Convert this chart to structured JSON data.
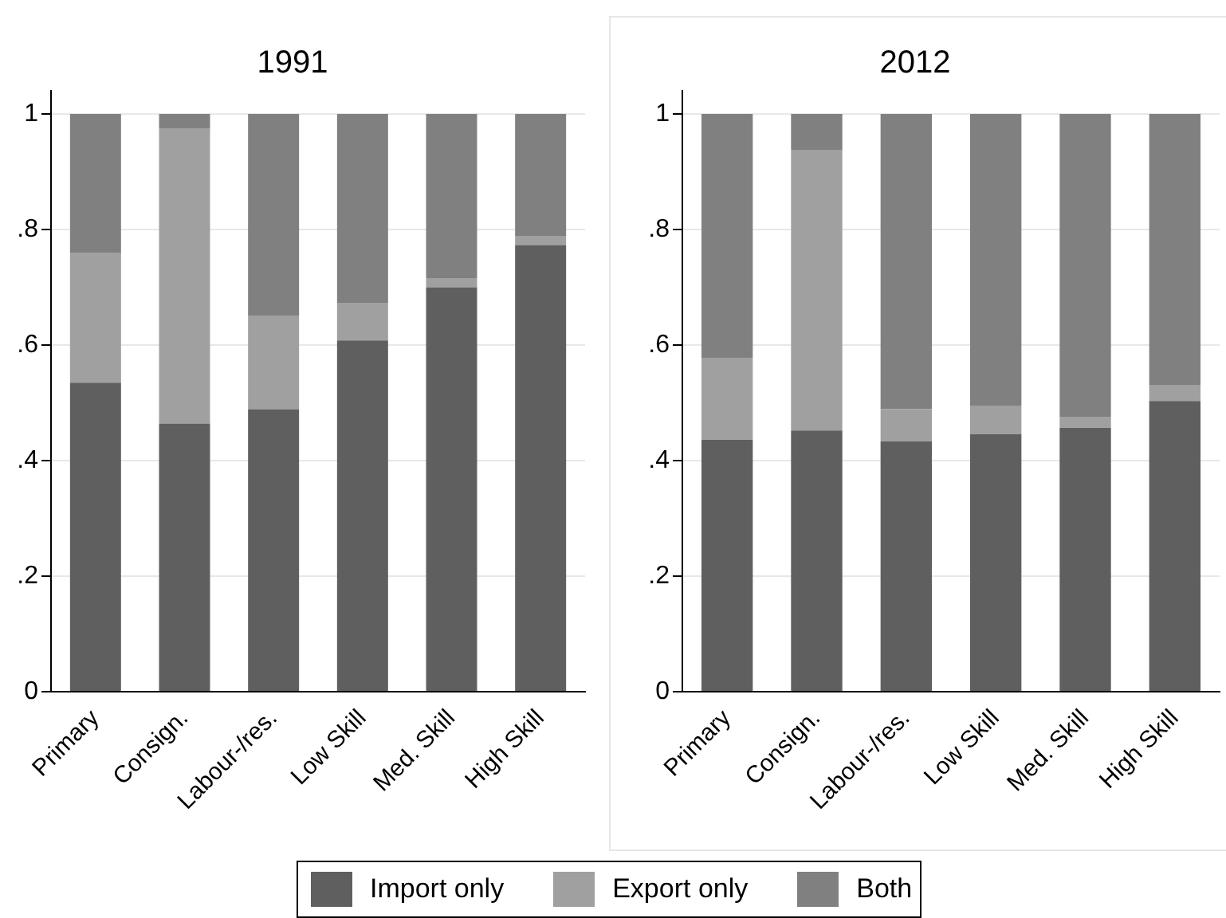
{
  "chart_data": [
    {
      "type": "bar",
      "title": "1991",
      "categories": [
        "Primary",
        "Consign.",
        "Labour-/res.",
        "Low Skill",
        "Med. Skill",
        "High Skill"
      ],
      "stacked": true,
      "series": [
        {
          "name": "Import only",
          "color": "#5f5f5f",
          "values": [
            0.535,
            0.464,
            0.489,
            0.608,
            0.7,
            0.773
          ]
        },
        {
          "name": "Export only",
          "color": "#a0a0a0",
          "values": [
            0.224,
            0.51,
            0.161,
            0.064,
            0.015,
            0.016
          ]
        },
        {
          "name": "Both",
          "color": "#808080",
          "values": [
            0.241,
            0.026,
            0.35,
            0.328,
            0.285,
            0.211
          ]
        }
      ],
      "ylim": [
        0,
        1.04
      ],
      "yticks": [
        {
          "value": 0,
          "label": "0"
        },
        {
          "value": 0.2,
          "label": ".2"
        },
        {
          "value": 0.4,
          "label": ".4"
        },
        {
          "value": 0.6,
          "label": ".6"
        },
        {
          "value": 0.8,
          "label": ".8"
        },
        {
          "value": 1,
          "label": "1"
        }
      ],
      "grid": "y",
      "legend": "bottom"
    },
    {
      "type": "bar",
      "title": "2012",
      "categories": [
        "Primary",
        "Consign.",
        "Labour-/res.",
        "Low Skill",
        "Med. Skill",
        "High Skill"
      ],
      "stacked": true,
      "series": [
        {
          "color": "#5f5f5f",
          "values": [
            0.436,
            0.452,
            0.433,
            0.446,
            0.457,
            0.503
          ]
        },
        {
          "color": "#a0a0a0",
          "values": [
            0.142,
            0.485,
            0.056,
            0.048,
            0.018,
            0.027
          ]
        },
        {
          "color": "#808080",
          "values": [
            0.422,
            0.063,
            0.511,
            0.506,
            0.525,
            0.47
          ]
        }
      ],
      "ylim": [
        0,
        1.04
      ],
      "yticks": [
        {
          "value": 0,
          "label": "0"
        },
        {
          "value": 0.2,
          "label": ".2"
        },
        {
          "value": 0.4,
          "label": ".4"
        },
        {
          "value": 0.6,
          "label": ".6"
        },
        {
          "value": 0.8,
          "label": ".8"
        },
        {
          "value": 1,
          "label": "1"
        }
      ],
      "grid": "y"
    }
  ]
}
